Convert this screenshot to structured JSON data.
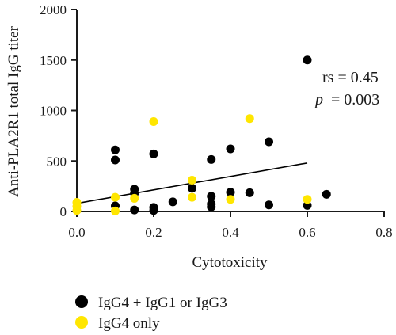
{
  "chart_data": {
    "type": "scatter",
    "xlabel": "Cytotoxicity",
    "ylabel": "Anti-PLA2R1 total IgG titer",
    "xlim": [
      0,
      0.8
    ],
    "ylim": [
      0,
      2000
    ],
    "x_ticks": [
      "0.0",
      "0.2",
      "0.4",
      "0.6",
      "0.8"
    ],
    "y_ticks": [
      "0",
      "500",
      "1000",
      "1500",
      "2000"
    ],
    "annotations": {
      "rs": "rs = 0.45",
      "p_symbol": "p",
      "p_value": "= 0.003"
    },
    "trendline": {
      "x": [
        0,
        0.6
      ],
      "y": [
        80,
        480
      ],
      "color": "#000000"
    },
    "series": [
      {
        "name": "IgG4 + IgG1 or IgG3",
        "color": "#000000",
        "points": [
          {
            "x": 0.1,
            "y": 610
          },
          {
            "x": 0.1,
            "y": 510
          },
          {
            "x": 0.1,
            "y": 55
          },
          {
            "x": 0.15,
            "y": 220
          },
          {
            "x": 0.15,
            "y": 180
          },
          {
            "x": 0.15,
            "y": 15
          },
          {
            "x": 0.2,
            "y": 570
          },
          {
            "x": 0.2,
            "y": 40
          },
          {
            "x": 0.2,
            "y": 10
          },
          {
            "x": 0.25,
            "y": 95
          },
          {
            "x": 0.3,
            "y": 230
          },
          {
            "x": 0.35,
            "y": 515
          },
          {
            "x": 0.35,
            "y": 150
          },
          {
            "x": 0.35,
            "y": 75
          },
          {
            "x": 0.35,
            "y": 45
          },
          {
            "x": 0.4,
            "y": 620
          },
          {
            "x": 0.4,
            "y": 190
          },
          {
            "x": 0.45,
            "y": 185
          },
          {
            "x": 0.5,
            "y": 690
          },
          {
            "x": 0.5,
            "y": 65
          },
          {
            "x": 0.6,
            "y": 1500
          },
          {
            "x": 0.6,
            "y": 60
          },
          {
            "x": 0.65,
            "y": 170
          }
        ]
      },
      {
        "name": "IgG4 only",
        "color": "#ffe600",
        "points": [
          {
            "x": 0.0,
            "y": 90
          },
          {
            "x": 0.0,
            "y": 50
          },
          {
            "x": 0.0,
            "y": 10
          },
          {
            "x": 0.1,
            "y": 140
          },
          {
            "x": 0.1,
            "y": 5
          },
          {
            "x": 0.15,
            "y": 130
          },
          {
            "x": 0.2,
            "y": 890
          },
          {
            "x": 0.3,
            "y": 310
          },
          {
            "x": 0.3,
            "y": 140
          },
          {
            "x": 0.4,
            "y": 120
          },
          {
            "x": 0.45,
            "y": 920
          },
          {
            "x": 0.6,
            "y": 120
          }
        ]
      }
    ]
  }
}
